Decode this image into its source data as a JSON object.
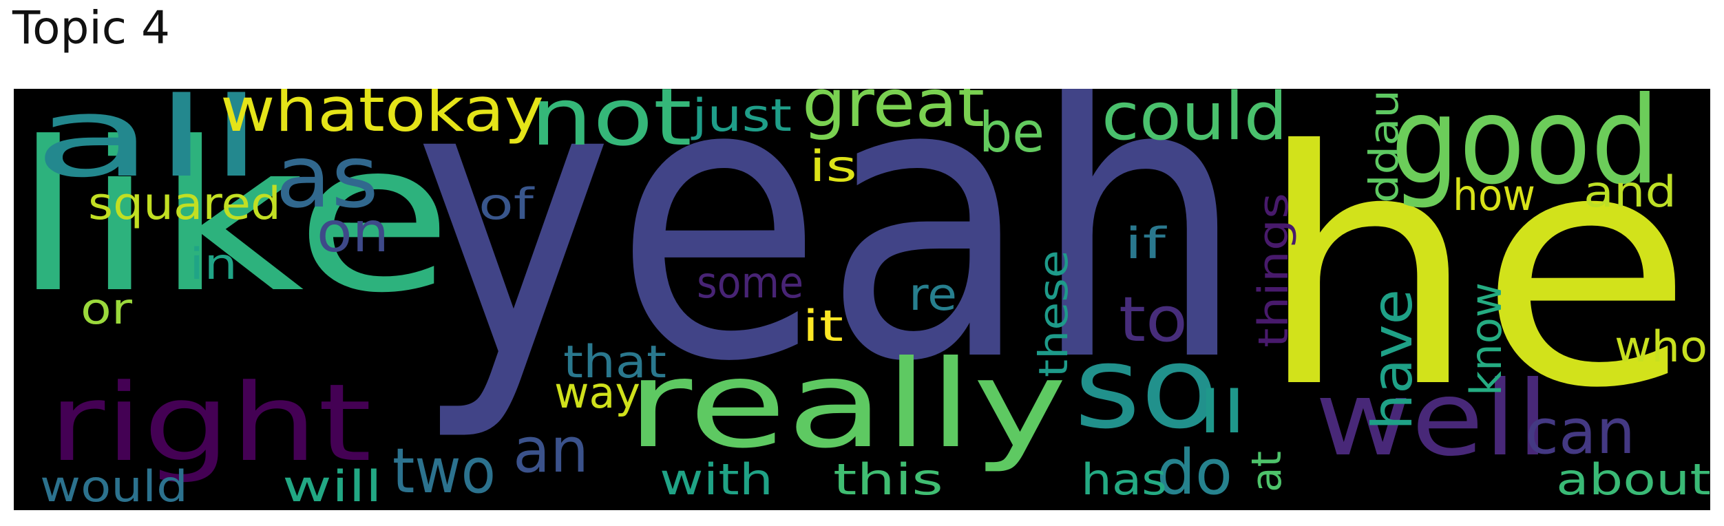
{
  "title": "Topic 4",
  "background_color": "#000000",
  "words": [
    {
      "text": "yeah",
      "weight": 1.0,
      "color": "#414487"
    },
    {
      "text": "he",
      "weight": 0.92,
      "color": "#d2e21b"
    },
    {
      "text": "like",
      "weight": 0.66,
      "color": "#2db27d"
    },
    {
      "text": "really",
      "weight": 0.42,
      "color": "#5ec962"
    },
    {
      "text": "good",
      "weight": 0.4,
      "color": "#6ccd5a"
    },
    {
      "text": "so",
      "weight": 0.38,
      "color": "#21918c"
    },
    {
      "text": "all",
      "weight": 0.38,
      "color": "#23888e"
    },
    {
      "text": "right",
      "weight": 0.34,
      "color": "#440154"
    },
    {
      "text": "well",
      "weight": 0.34,
      "color": "#482878"
    },
    {
      "text": "as",
      "weight": 0.28,
      "color": "#31688e"
    },
    {
      "text": "not",
      "weight": 0.26,
      "color": "#35b779"
    },
    {
      "text": "great",
      "weight": 0.22,
      "color": "#7ad151"
    },
    {
      "text": "could",
      "weight": 0.2,
      "color": "#4ac16d"
    },
    {
      "text": "whatokay",
      "weight": 0.2,
      "color": "#e5e419"
    },
    {
      "text": "two",
      "weight": 0.2,
      "color": "#2c728e"
    },
    {
      "text": "have",
      "weight": 0.2,
      "color": "#1fa187"
    },
    {
      "text": "an",
      "weight": 0.2,
      "color": "#3b528b"
    },
    {
      "text": "do",
      "weight": 0.18,
      "color": "#26828e"
    },
    {
      "text": "to",
      "weight": 0.18,
      "color": "#472d7b"
    },
    {
      "text": "can",
      "weight": 0.18,
      "color": "#443983"
    },
    {
      "text": "be",
      "weight": 0.16,
      "color": "#63cb5f"
    },
    {
      "text": "ll",
      "weight": 0.16,
      "color": "#1f988b"
    },
    {
      "text": "on",
      "weight": 0.15,
      "color": "#3e4989"
    },
    {
      "text": "squared",
      "weight": 0.13,
      "color": "#c2df23"
    },
    {
      "text": "re",
      "weight": 0.13,
      "color": "#277f8e"
    },
    {
      "text": "things",
      "weight": 0.13,
      "color": "#481a6c"
    },
    {
      "text": "these",
      "weight": 0.13,
      "color": "#1e9b8a"
    },
    {
      "text": "know",
      "weight": 0.13,
      "color": "#25ac82"
    },
    {
      "text": "ddau",
      "weight": 0.13,
      "color": "#5ec962"
    },
    {
      "text": "that",
      "weight": 0.14,
      "color": "#2a788e"
    },
    {
      "text": "some",
      "weight": 0.12,
      "color": "#482475"
    },
    {
      "text": "it",
      "weight": 0.13,
      "color": "#fde725"
    },
    {
      "text": "is",
      "weight": 0.12,
      "color": "#dde318"
    },
    {
      "text": "of",
      "weight": 0.12,
      "color": "#39568c"
    },
    {
      "text": "just",
      "weight": 0.12,
      "color": "#1f9e89"
    },
    {
      "text": "if",
      "weight": 0.12,
      "color": "#2a788e"
    },
    {
      "text": "how",
      "weight": 0.12,
      "color": "#d8e219"
    },
    {
      "text": "and",
      "weight": 0.12,
      "color": "#bddf26"
    },
    {
      "text": "who",
      "weight": 0.12,
      "color": "#c8e020"
    },
    {
      "text": "about",
      "weight": 0.12,
      "color": "#3aba76"
    },
    {
      "text": "way",
      "weight": 0.12,
      "color": "#d0e11c"
    },
    {
      "text": "with",
      "weight": 0.12,
      "color": "#20a386"
    },
    {
      "text": "this",
      "weight": 0.12,
      "color": "#40bd72"
    },
    {
      "text": "has",
      "weight": 0.12,
      "color": "#24aa83"
    },
    {
      "text": "at",
      "weight": 0.12,
      "color": "#4ec36b"
    },
    {
      "text": "in",
      "weight": 0.12,
      "color": "#20a486"
    },
    {
      "text": "or",
      "weight": 0.12,
      "color": "#9bd93c"
    },
    {
      "text": "would",
      "weight": 0.12,
      "color": "#2c728e"
    },
    {
      "text": "will",
      "weight": 0.12,
      "color": "#22a884"
    }
  ]
}
